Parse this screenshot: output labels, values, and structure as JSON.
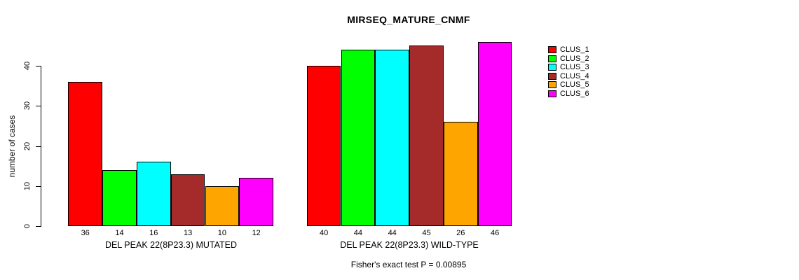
{
  "chart_data": {
    "type": "bar",
    "title": "MIRSEQ_MATURE_CNMF",
    "ylabel": "number of cases",
    "ylim": [
      0,
      46
    ],
    "yticks": [
      0,
      10,
      20,
      30,
      40
    ],
    "grid": false,
    "legend_position": "right",
    "legend": [
      {
        "name": "CLUS_1",
        "color": "#FF0000"
      },
      {
        "name": "CLUS_2",
        "color": "#00FF00"
      },
      {
        "name": "CLUS_3",
        "color": "#00FFFF"
      },
      {
        "name": "CLUS_4",
        "color": "#A52A2A"
      },
      {
        "name": "CLUS_5",
        "color": "#FFA500"
      },
      {
        "name": "CLUS_6",
        "color": "#FF00FF"
      }
    ],
    "groups": [
      {
        "label": "DEL PEAK 22(8P23.3) MUTATED",
        "bar_labels": [
          "36",
          "14",
          "16",
          "13",
          "10",
          "12"
        ],
        "values": [
          36,
          14,
          16,
          13,
          10,
          12
        ]
      },
      {
        "label": "DEL PEAK 22(8P23.3) WILD-TYPE",
        "bar_labels": [
          "40",
          "44",
          "44",
          "45",
          "26",
          "46"
        ],
        "values": [
          40,
          44,
          44,
          45,
          26,
          46
        ]
      }
    ],
    "annotation": "Fisher's exact test P = 0.00895"
  }
}
